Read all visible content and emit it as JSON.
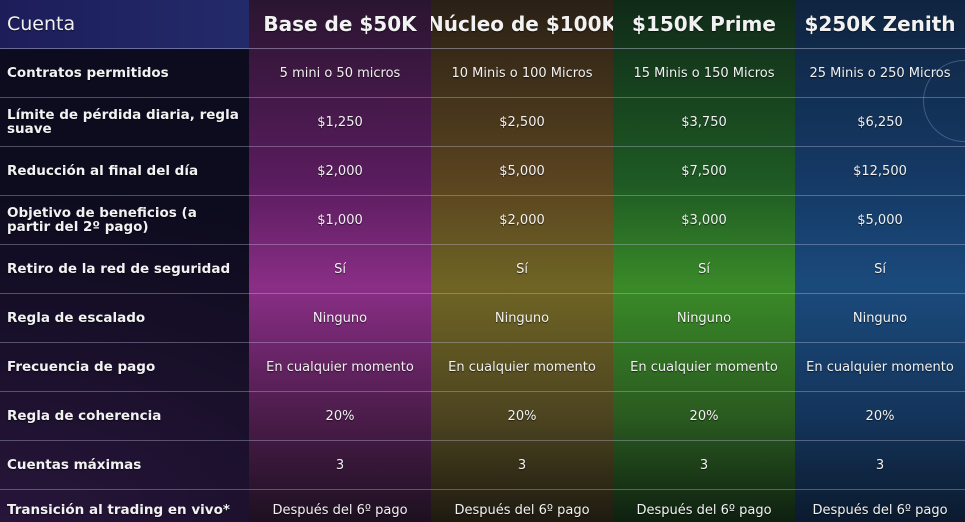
{
  "header": {
    "account_label": "Cuenta",
    "plans": [
      "Base de $50K",
      "Núcleo de $100K",
      "$150K Prime",
      "$250K Zenith"
    ]
  },
  "rows": [
    {
      "label": "Contratos permitidos",
      "values": [
        "5 mini o 50 micros",
        "10 Minis o 100 Micros",
        "15 Minis o 150 Micros",
        "25 Minis o 250 Micros"
      ]
    },
    {
      "label": "Límite de pérdida diaria, regla suave",
      "values": [
        "$1,250",
        "$2,500",
        "$3,750",
        "$6,250"
      ]
    },
    {
      "label": "Reducción al final del día",
      "values": [
        "$2,000",
        "$5,000",
        "$7,500",
        "$12,500"
      ]
    },
    {
      "label": "Objetivo de beneficios (a partir del 2º pago)",
      "values": [
        "$1,000",
        "$2,000",
        "$3,000",
        "$5,000"
      ]
    },
    {
      "label": "Retiro de la red de seguridad",
      "values": [
        "Sí",
        "Sí",
        "Sí",
        "Sí"
      ]
    },
    {
      "label": "Regla de escalado",
      "values": [
        "Ninguno",
        "Ninguno",
        "Ninguno",
        "Ninguno"
      ]
    },
    {
      "label": "Frecuencia de pago",
      "values": [
        "En cualquier momento",
        "En cualquier momento",
        "En cualquier momento",
        "En cualquier momento"
      ]
    },
    {
      "label": "Regla de coherencia",
      "values": [
        "20%",
        "20%",
        "20%",
        "20%"
      ]
    },
    {
      "label": "Cuentas máximas",
      "values": [
        "3",
        "3",
        "3",
        "3"
      ]
    },
    {
      "label": "Transición al trading en vivo*",
      "values": [
        "Después del 6º pago",
        "Después del 6º pago",
        "Después del 6º pago",
        "Después del 6º pago"
      ]
    }
  ],
  "colors": {
    "plan_base": "#8a2e86",
    "plan_nucleo": "#6f6424",
    "plan_prime": "#3a8a28",
    "plan_zenith": "#1a4a7c"
  }
}
